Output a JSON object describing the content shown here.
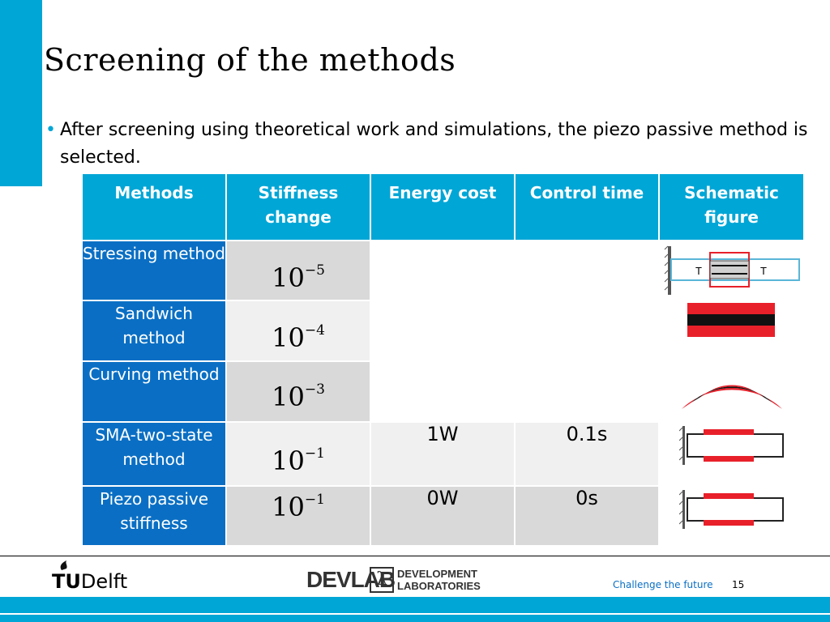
{
  "slide": {
    "title": "Screening of the methods",
    "bullet": "After screening using theoretical work and simulations, the piezo passive method is selected.",
    "page_number": "15"
  },
  "table": {
    "headers": [
      "Methods",
      "Stiffness change",
      "Energy cost",
      "Control time",
      "Schematic figure"
    ],
    "rows": [
      {
        "method": "Stressing method",
        "stiffness_base": "10",
        "stiffness_exp": "−5",
        "energy": "",
        "time": "",
        "figure": "stressing-schematic"
      },
      {
        "method": "Sandwich method",
        "stiffness_base": "10",
        "stiffness_exp": "−4",
        "energy": "",
        "time": "",
        "figure": "sandwich-schematic"
      },
      {
        "method": "Curving method",
        "stiffness_base": "10",
        "stiffness_exp": "−3",
        "energy": "",
        "time": "",
        "figure": "curving-schematic"
      },
      {
        "method": "SMA-two-state method",
        "stiffness_base": "10",
        "stiffness_exp": "−1",
        "energy": "1W",
        "time": "0.1s",
        "figure": "sma-schematic"
      },
      {
        "method": "Piezo passive stiffness",
        "stiffness_base": "10",
        "stiffness_exp": "−1",
        "energy": "0W",
        "time": "0s",
        "figure": "piezo-schematic"
      }
    ],
    "figure_labels": {
      "tension_left": "T",
      "tension_right": "T"
    }
  },
  "footer": {
    "tud_prefix": "TU",
    "tud_name": "Delft",
    "devlab_name": "DEVLAB",
    "devlab_symbol": "λ",
    "devlab_sub_1": "DEVELOPMENT",
    "devlab_sub_2": "LABORATORIES",
    "tagline": "Challenge the future"
  },
  "colors": {
    "accent": "#00a6d6",
    "row_header": "#0a6fc4",
    "schematic_red": "#e8202a"
  }
}
